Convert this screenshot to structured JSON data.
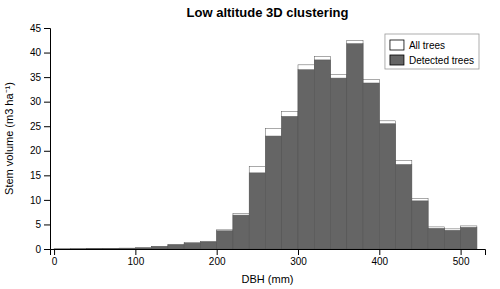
{
  "chart_data": {
    "type": "histogram",
    "title": "Low altitude 3D clustering",
    "x_label": "DBH (mm)",
    "y_label": "Stem volume (m3 ha⁻¹)",
    "bins": [
      0,
      20,
      40,
      60,
      80,
      100,
      120,
      140,
      160,
      180,
      200,
      220,
      240,
      260,
      280,
      300,
      320,
      340,
      360,
      380,
      400,
      420,
      440,
      460,
      480,
      500,
      520
    ],
    "series": [
      {
        "name": "All trees",
        "color": "#ffffff",
        "values": [
          0.02,
          0.05,
          0.08,
          0.12,
          0.18,
          0.25,
          0.55,
          0.9,
          1.3,
          1.55,
          3.9,
          7.2,
          16.8,
          24.5,
          28.0,
          37.5,
          39.2,
          35.5,
          42.5,
          34.5,
          26.1,
          18.0,
          10.3,
          4.5,
          4.1,
          4.7
        ]
      },
      {
        "name": "Detected trees",
        "color": "#656565",
        "values": [
          0.02,
          0.04,
          0.07,
          0.1,
          0.15,
          0.22,
          0.5,
          0.85,
          1.2,
          1.45,
          3.7,
          6.9,
          15.5,
          23.0,
          27.0,
          36.5,
          38.5,
          34.8,
          41.8,
          33.8,
          25.5,
          17.2,
          9.8,
          4.2,
          3.8,
          4.4
        ]
      }
    ],
    "xlim": [
      -5,
      530
    ],
    "xticks": [
      0,
      100,
      200,
      300,
      400,
      500
    ],
    "ylim": [
      0,
      45
    ],
    "yticks": [
      0,
      5,
      10,
      15,
      20,
      25,
      30,
      35,
      40,
      45
    ],
    "grid": false,
    "legend": "upper-right"
  }
}
